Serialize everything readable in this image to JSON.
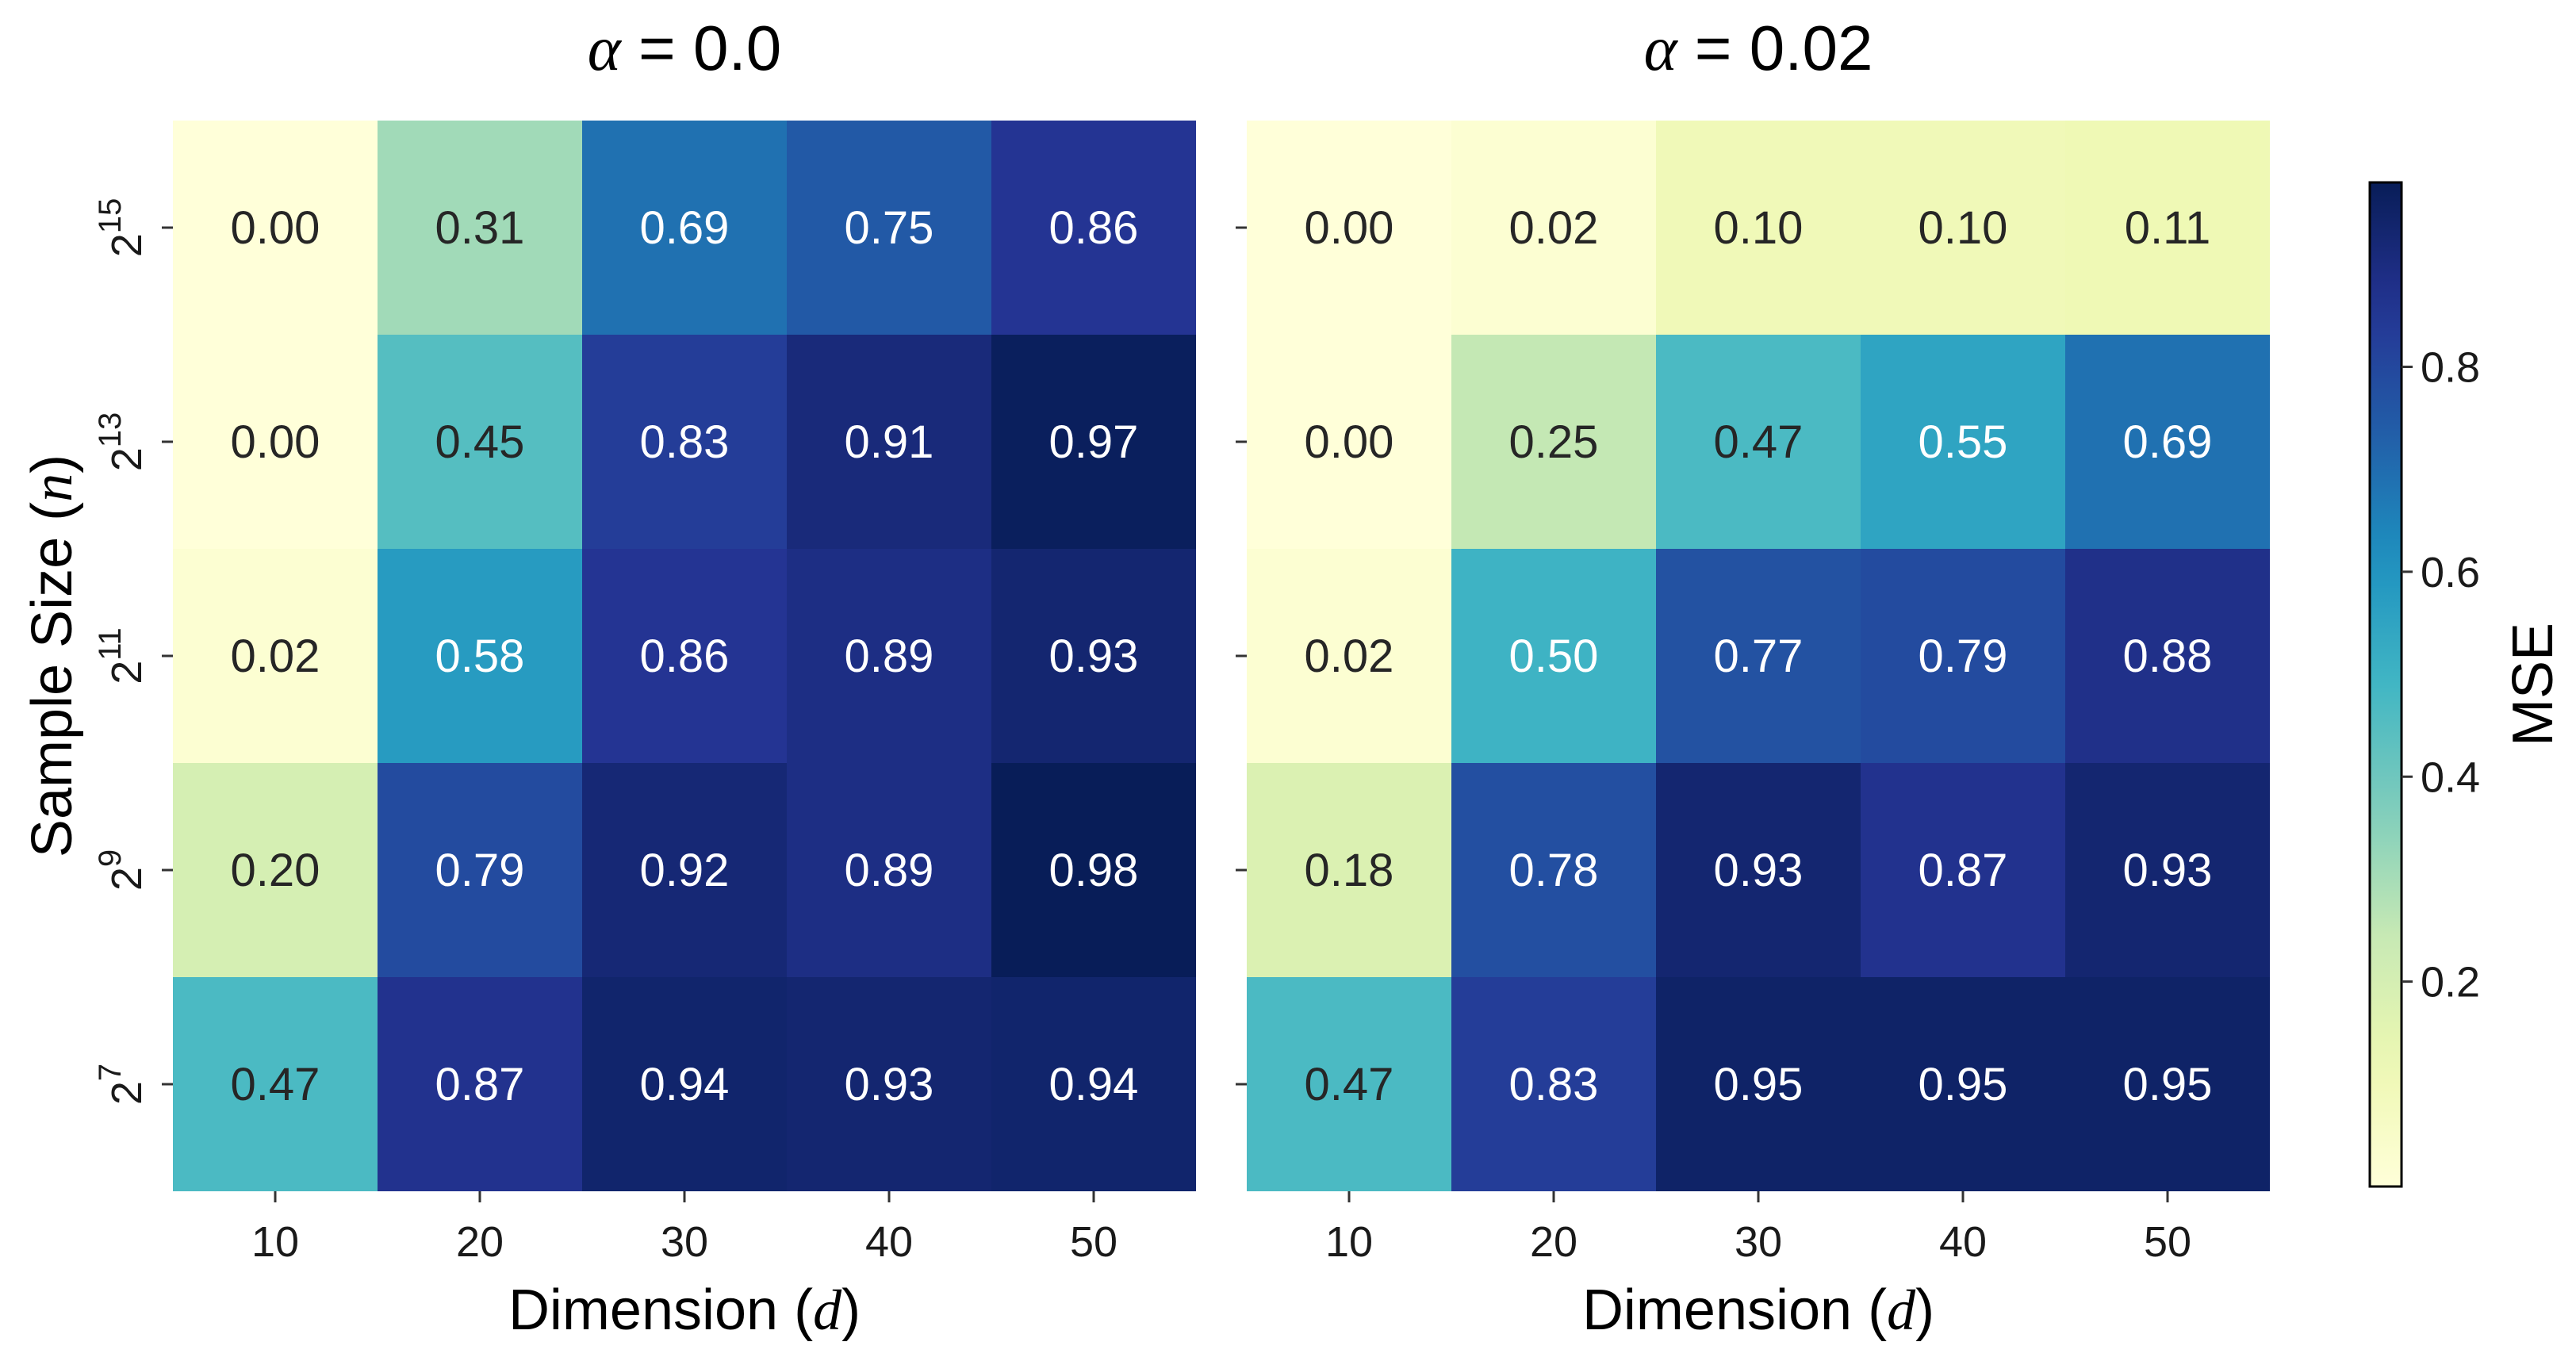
{
  "chart_data": {
    "type": "heatmap",
    "ylabel": "Sample Size",
    "ylabel_var": "n",
    "colorbar": {
      "label": "MSE",
      "range": [
        0.0,
        0.98
      ],
      "ticks": [
        "0.2",
        "0.4",
        "0.6",
        "0.8"
      ],
      "tick_values": [
        0.2,
        0.4,
        0.6,
        0.8
      ],
      "colormap": "YlGnBu"
    },
    "row_labels": [
      {
        "base": "2",
        "exp": "15"
      },
      {
        "base": "2",
        "exp": "13"
      },
      {
        "base": "2",
        "exp": "11"
      },
      {
        "base": "2",
        "exp": "9"
      },
      {
        "base": "2",
        "exp": "7"
      }
    ],
    "col_labels": [
      "10",
      "20",
      "30",
      "40",
      "50"
    ],
    "panels": [
      {
        "title_var": "α",
        "title_value": " = 0.0",
        "xlabel": "Dimension",
        "xlabel_var": "d",
        "values": [
          [
            0.0,
            0.31,
            0.69,
            0.75,
            0.86
          ],
          [
            0.0,
            0.45,
            0.83,
            0.91,
            0.97
          ],
          [
            0.02,
            0.58,
            0.86,
            0.89,
            0.93
          ],
          [
            0.2,
            0.79,
            0.92,
            0.89,
            0.98
          ],
          [
            0.47,
            0.87,
            0.94,
            0.93,
            0.94
          ]
        ]
      },
      {
        "title_var": "α",
        "title_value": " = 0.02",
        "xlabel": "Dimension",
        "xlabel_var": "d",
        "values": [
          [
            0.0,
            0.02,
            0.1,
            0.1,
            0.11
          ],
          [
            0.0,
            0.25,
            0.47,
            0.55,
            0.69
          ],
          [
            0.02,
            0.5,
            0.77,
            0.79,
            0.88
          ],
          [
            0.18,
            0.78,
            0.93,
            0.87,
            0.93
          ],
          [
            0.47,
            0.83,
            0.95,
            0.95,
            0.95
          ]
        ]
      }
    ]
  }
}
